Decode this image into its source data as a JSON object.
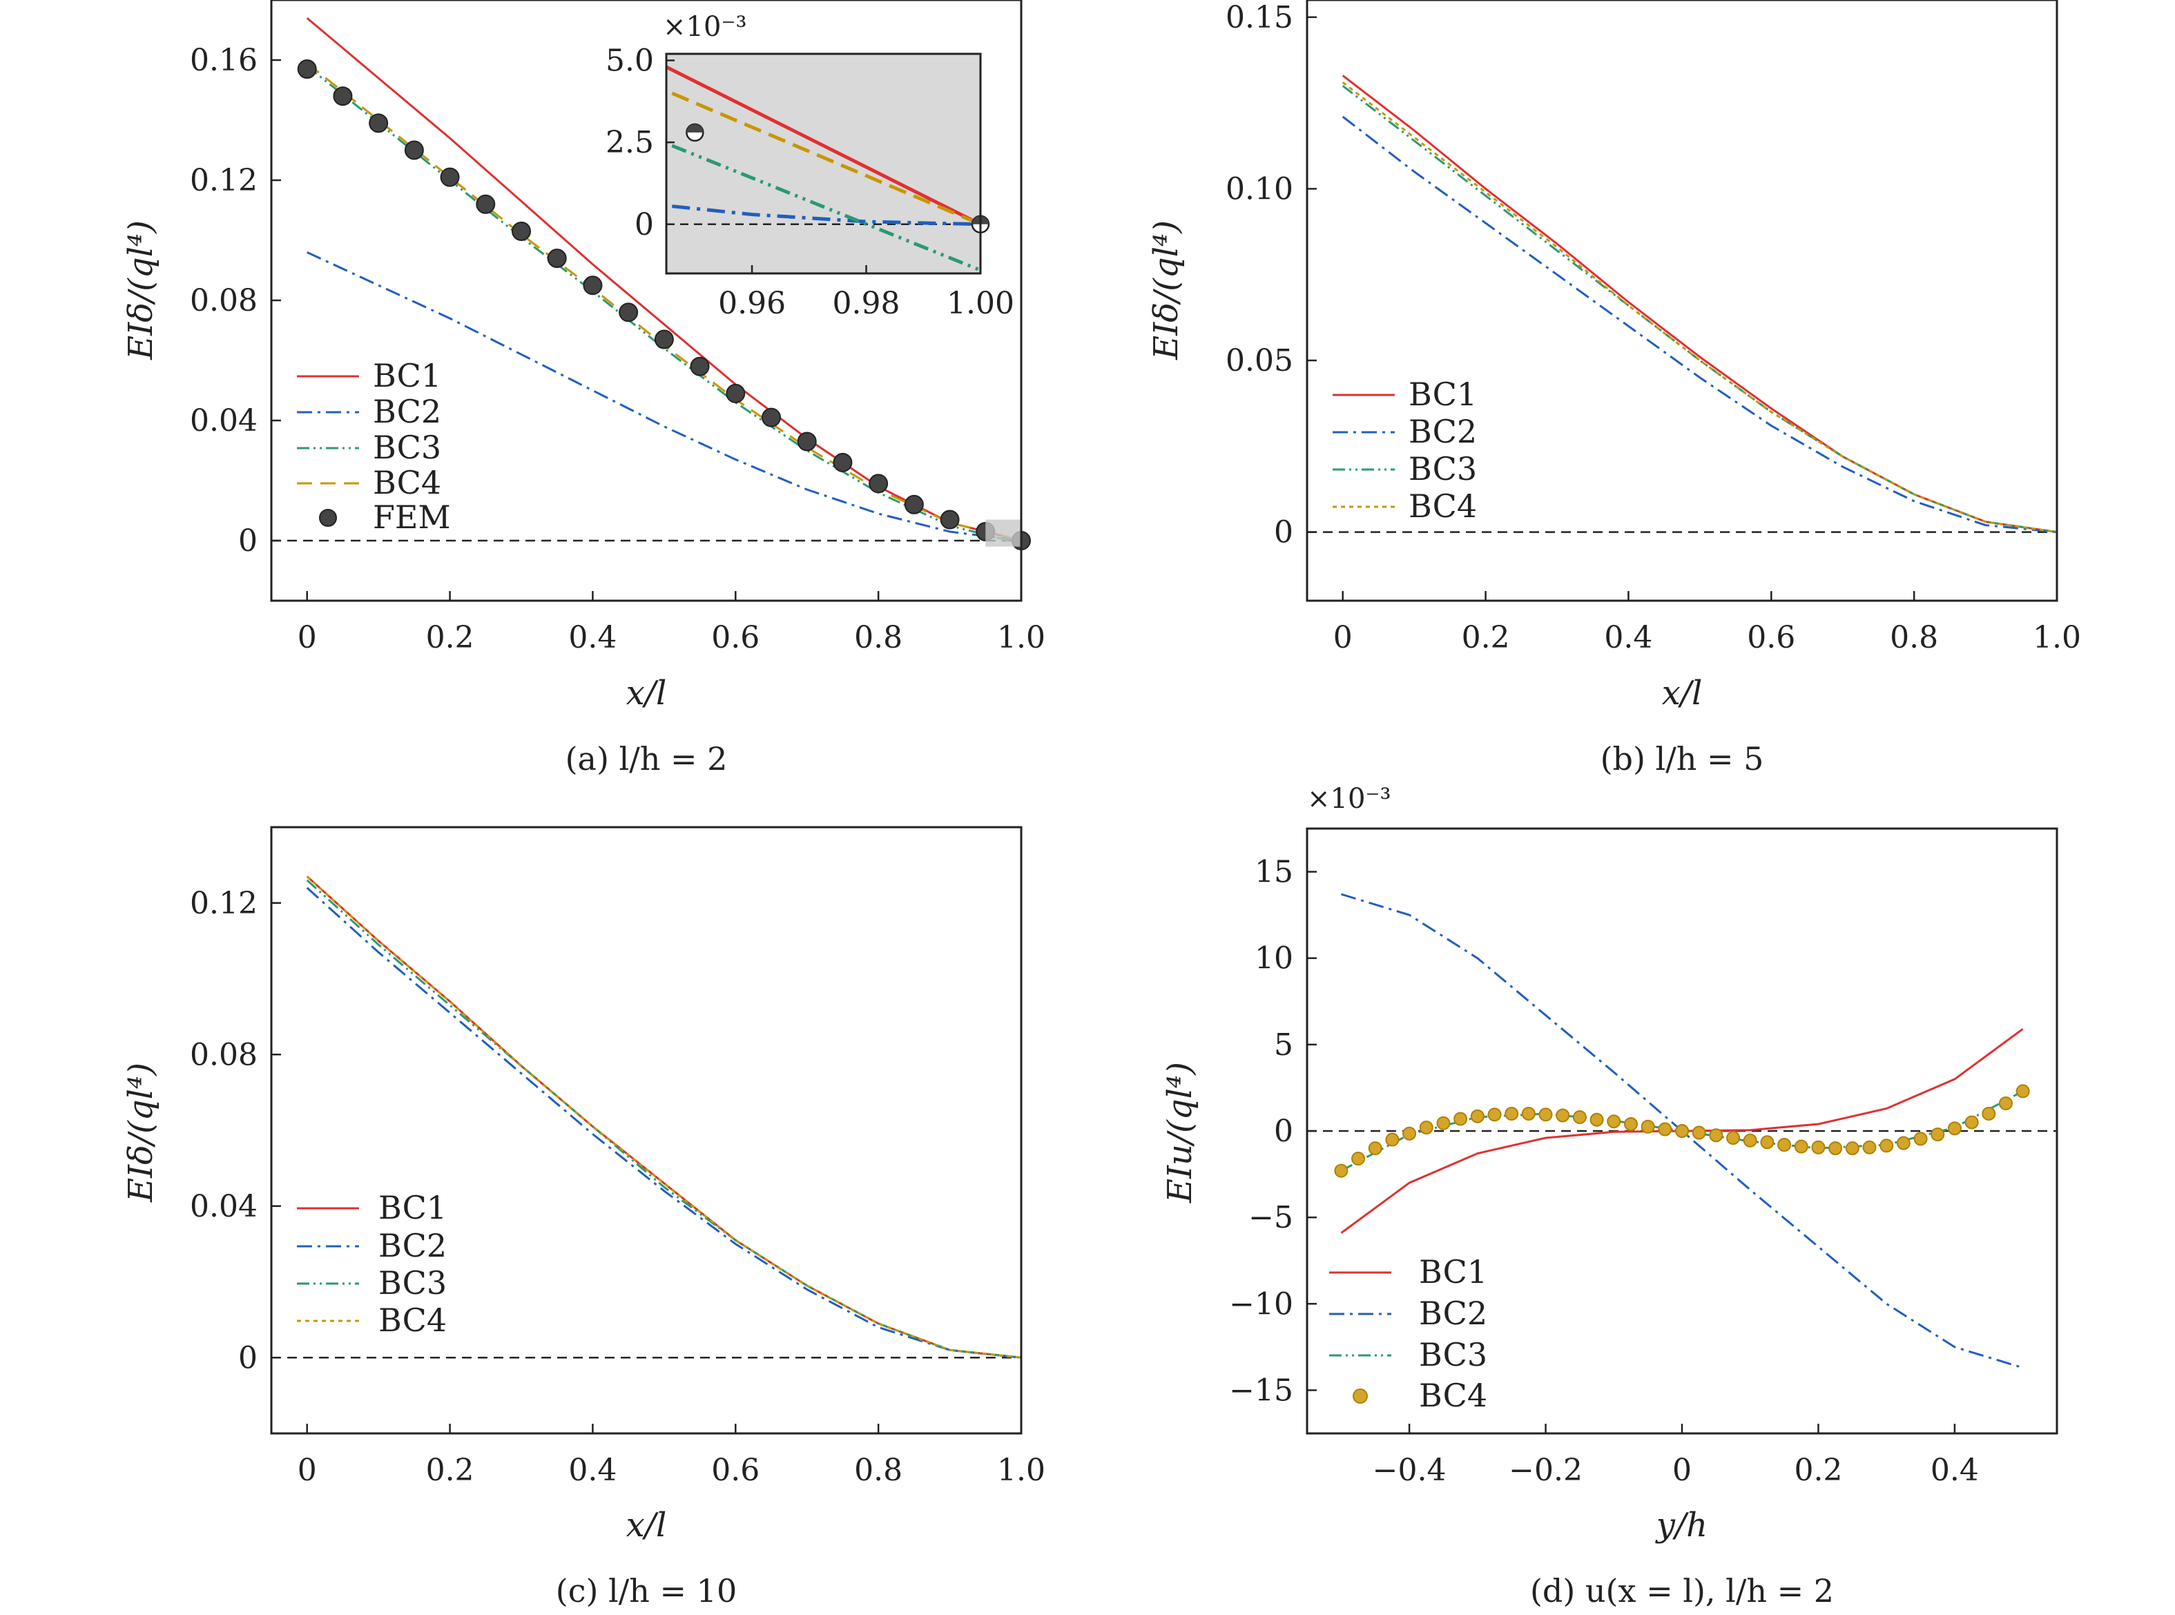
{
  "figure": {
    "colors": {
      "BC1": "#e03030",
      "BC2": "#1f5fbf",
      "BC3": "#2a9a72",
      "BC4": "#c89600",
      "FEM": "#444444",
      "zero": "#222222",
      "inset_bg": "#d9d9d9"
    }
  },
  "chart_data": [
    {
      "id": "a",
      "type": "line",
      "caption": "(a) l/h = 2",
      "xlabel": "x/l",
      "ylabel": "EIδ/(ql⁴)",
      "xlim": [
        -0.05,
        1.0
      ],
      "ylim": [
        -0.02,
        0.18
      ],
      "xticks": [
        0,
        0.2,
        0.4,
        0.6,
        0.8,
        1.0
      ],
      "xtick_labels": [
        "0",
        "0.2",
        "0.4",
        "0.6",
        "0.8",
        "1.0"
      ],
      "yticks": [
        0,
        0.04,
        0.08,
        0.12,
        0.16
      ],
      "ytick_labels": [
        "0",
        "0.04",
        "0.08",
        "0.12",
        "0.16"
      ],
      "legend": [
        "BC1",
        "BC2",
        "BC3",
        "BC4",
        "FEM"
      ],
      "x": [
        0,
        0.1,
        0.2,
        0.3,
        0.4,
        0.5,
        0.6,
        0.7,
        0.8,
        0.9,
        1.0
      ],
      "series": [
        {
          "name": "BC1",
          "style": "solid",
          "values": [
            0.174,
            0.154,
            0.134,
            0.113,
            0.092,
            0.072,
            0.052,
            0.034,
            0.018,
            0.006,
            0.0
          ]
        },
        {
          "name": "BC2",
          "style": "dashdot",
          "values": [
            0.096,
            0.085,
            0.074,
            0.062,
            0.05,
            0.038,
            0.027,
            0.017,
            0.009,
            0.003,
            0.0
          ]
        },
        {
          "name": "BC3",
          "style": "dashdotdot",
          "values": [
            0.158,
            0.139,
            0.12,
            0.101,
            0.083,
            0.064,
            0.046,
            0.03,
            0.016,
            0.005,
            -0.001
          ]
        },
        {
          "name": "BC4",
          "style": "dashed",
          "values": [
            0.159,
            0.14,
            0.121,
            0.102,
            0.084,
            0.065,
            0.047,
            0.031,
            0.017,
            0.006,
            0.0
          ]
        }
      ],
      "points": {
        "name": "FEM",
        "x": [
          0,
          0.05,
          0.1,
          0.15,
          0.2,
          0.25,
          0.3,
          0.35,
          0.4,
          0.45,
          0.5,
          0.55,
          0.6,
          0.65,
          0.7,
          0.75,
          0.8,
          0.85,
          0.9,
          0.95,
          1.0
        ],
        "values": [
          0.157,
          0.148,
          0.139,
          0.13,
          0.121,
          0.112,
          0.103,
          0.094,
          0.085,
          0.076,
          0.067,
          0.058,
          0.049,
          0.041,
          0.033,
          0.026,
          0.019,
          0.012,
          0.007,
          0.003,
          0.0
        ]
      },
      "inset": {
        "scale_label": "×10⁻³",
        "xlim": [
          0.945,
          1.0
        ],
        "ylim": [
          -1.5,
          5.2
        ],
        "xticks": [
          0.96,
          0.98,
          1.0
        ],
        "xtick_labels": [
          "0.96",
          "0.98",
          "1.00"
        ],
        "yticks": [
          0,
          2.5,
          5.0
        ],
        "ytick_labels": [
          "0",
          "2.5",
          "5.0"
        ],
        "series": [
          {
            "name": "BC1",
            "x": [
              0.945,
              1.0
            ],
            "values": [
              4.8,
              0.0
            ]
          },
          {
            "name": "BC2",
            "x": [
              0.946,
              0.96,
              0.98,
              1.0
            ],
            "values": [
              0.55,
              0.3,
              0.08,
              0.0
            ]
          },
          {
            "name": "BC3",
            "x": [
              0.946,
              1.0
            ],
            "values": [
              2.4,
              -1.4
            ]
          },
          {
            "name": "BC4",
            "x": [
              0.946,
              1.0
            ],
            "values": [
              4.0,
              0.0
            ]
          }
        ],
        "points": {
          "x": [
            0.95,
            1.0
          ],
          "values": [
            2.8,
            0.0
          ]
        }
      }
    },
    {
      "id": "b",
      "type": "line",
      "caption": "(b) l/h = 5",
      "xlabel": "x/l",
      "ylabel": "EIδ/(ql⁴)",
      "xlim": [
        -0.05,
        1.0
      ],
      "ylim": [
        -0.02,
        0.155
      ],
      "xticks": [
        0,
        0.2,
        0.4,
        0.6,
        0.8,
        1.0
      ],
      "xtick_labels": [
        "0",
        "0.2",
        "0.4",
        "0.6",
        "0.8",
        "1.0"
      ],
      "yticks": [
        0,
        0.05,
        0.1,
        0.15
      ],
      "ytick_labels": [
        "0",
        "0.05",
        "0.10",
        "0.15"
      ],
      "legend": [
        "BC1",
        "BC2",
        "BC3",
        "BC4"
      ],
      "x": [
        0,
        0.1,
        0.2,
        0.3,
        0.4,
        0.5,
        0.6,
        0.7,
        0.8,
        0.9,
        1.0
      ],
      "series": [
        {
          "name": "BC1",
          "style": "solid",
          "values": [
            0.133,
            0.117,
            0.1,
            0.084,
            0.067,
            0.051,
            0.036,
            0.022,
            0.011,
            0.003,
            0.0
          ]
        },
        {
          "name": "BC2",
          "style": "dashdot",
          "values": [
            0.121,
            0.105,
            0.09,
            0.075,
            0.06,
            0.045,
            0.031,
            0.019,
            0.009,
            0.002,
            0.0
          ]
        },
        {
          "name": "BC3",
          "style": "dashdotdot",
          "values": [
            0.13,
            0.114,
            0.098,
            0.082,
            0.066,
            0.05,
            0.035,
            0.022,
            0.011,
            0.003,
            0.0
          ]
        },
        {
          "name": "BC4",
          "style": "dotted",
          "values": [
            0.131,
            0.115,
            0.099,
            0.083,
            0.066,
            0.05,
            0.035,
            0.022,
            0.011,
            0.003,
            0.0
          ]
        }
      ]
    },
    {
      "id": "c",
      "type": "line",
      "caption": "(c) l/h = 10",
      "xlabel": "x/l",
      "ylabel": "EIδ/(ql⁴)",
      "xlim": [
        -0.05,
        1.0
      ],
      "ylim": [
        -0.02,
        0.14
      ],
      "xticks": [
        0,
        0.2,
        0.4,
        0.6,
        0.8,
        1.0
      ],
      "xtick_labels": [
        "0",
        "0.2",
        "0.4",
        "0.6",
        "0.8",
        "1.0"
      ],
      "yticks": [
        0,
        0.04,
        0.08,
        0.12
      ],
      "ytick_labels": [
        "0",
        "0.04",
        "0.08",
        "0.12"
      ],
      "legend": [
        "BC1",
        "BC2",
        "BC3",
        "BC4"
      ],
      "x": [
        0,
        0.1,
        0.2,
        0.3,
        0.4,
        0.5,
        0.6,
        0.7,
        0.8,
        0.9,
        1.0
      ],
      "series": [
        {
          "name": "BC1",
          "style": "solid",
          "values": [
            0.127,
            0.11,
            0.094,
            0.077,
            0.061,
            0.046,
            0.031,
            0.019,
            0.009,
            0.002,
            0.0
          ]
        },
        {
          "name": "BC2",
          "style": "dashdot",
          "values": [
            0.124,
            0.107,
            0.091,
            0.075,
            0.059,
            0.044,
            0.03,
            0.018,
            0.008,
            0.002,
            0.0
          ]
        },
        {
          "name": "BC3",
          "style": "dashdotdot",
          "values": [
            0.126,
            0.109,
            0.093,
            0.077,
            0.061,
            0.045,
            0.031,
            0.019,
            0.009,
            0.002,
            0.0
          ]
        },
        {
          "name": "BC4",
          "style": "dotted",
          "values": [
            0.127,
            0.11,
            0.094,
            0.077,
            0.061,
            0.046,
            0.031,
            0.019,
            0.009,
            0.002,
            0.0
          ]
        }
      ]
    },
    {
      "id": "d",
      "type": "line",
      "caption": "(d) u(x = l), l/h = 2",
      "xlabel": "y/h",
      "ylabel": "EIu/(ql⁴)",
      "scale_label": "×10⁻³",
      "xlim": [
        -0.55,
        0.55
      ],
      "ylim": [
        -17.5,
        17.5
      ],
      "xticks": [
        -0.4,
        -0.2,
        0,
        0.2,
        0.4
      ],
      "xtick_labels": [
        "−0.4",
        "−0.2",
        "0",
        "0.2",
        "0.4"
      ],
      "yticks": [
        -15,
        -10,
        -5,
        0,
        5,
        10,
        15
      ],
      "ytick_labels": [
        "−15",
        "−10",
        "−5",
        "0",
        "5",
        "10",
        "15"
      ],
      "legend": [
        "BC1",
        "BC2",
        "BC3",
        "BC4"
      ],
      "x": [
        -0.5,
        -0.4,
        -0.3,
        -0.2,
        -0.1,
        0,
        0.1,
        0.2,
        0.3,
        0.4,
        0.5
      ],
      "series": [
        {
          "name": "BC1",
          "style": "solid",
          "values": [
            -5.9,
            -3.0,
            -1.3,
            -0.4,
            -0.05,
            0,
            0.05,
            0.4,
            1.3,
            3.0,
            5.9
          ]
        },
        {
          "name": "BC2",
          "style": "dashdot",
          "values": [
            13.7,
            12.5,
            10.0,
            6.7,
            3.4,
            0,
            -3.4,
            -6.7,
            -10.0,
            -12.5,
            -13.7
          ]
        },
        {
          "name": "BC3",
          "style": "dashdotdot",
          "values": [
            -2.3,
            -0.2,
            0.8,
            1.0,
            0.6,
            0,
            -0.6,
            -1.0,
            -0.8,
            0.2,
            2.3
          ]
        }
      ],
      "points": {
        "name": "BC4",
        "x": [
          -0.5,
          -0.475,
          -0.45,
          -0.425,
          -0.4,
          -0.375,
          -0.35,
          -0.325,
          -0.3,
          -0.275,
          -0.25,
          -0.225,
          -0.2,
          -0.175,
          -0.15,
          -0.125,
          -0.1,
          -0.075,
          -0.05,
          -0.025,
          0,
          0.025,
          0.05,
          0.075,
          0.1,
          0.125,
          0.15,
          0.175,
          0.2,
          0.225,
          0.25,
          0.275,
          0.3,
          0.325,
          0.35,
          0.375,
          0.4,
          0.425,
          0.45,
          0.475,
          0.5
        ],
        "values": [
          -2.3,
          -1.6,
          -1.0,
          -0.5,
          -0.15,
          0.2,
          0.45,
          0.7,
          0.85,
          0.95,
          1.0,
          1.0,
          0.95,
          0.9,
          0.8,
          0.65,
          0.55,
          0.4,
          0.25,
          0.1,
          0,
          -0.1,
          -0.25,
          -0.4,
          -0.55,
          -0.65,
          -0.8,
          -0.9,
          -0.95,
          -1.0,
          -1.0,
          -0.95,
          -0.85,
          -0.7,
          -0.45,
          -0.2,
          0.15,
          0.5,
          1.0,
          1.6,
          2.3
        ]
      }
    }
  ]
}
